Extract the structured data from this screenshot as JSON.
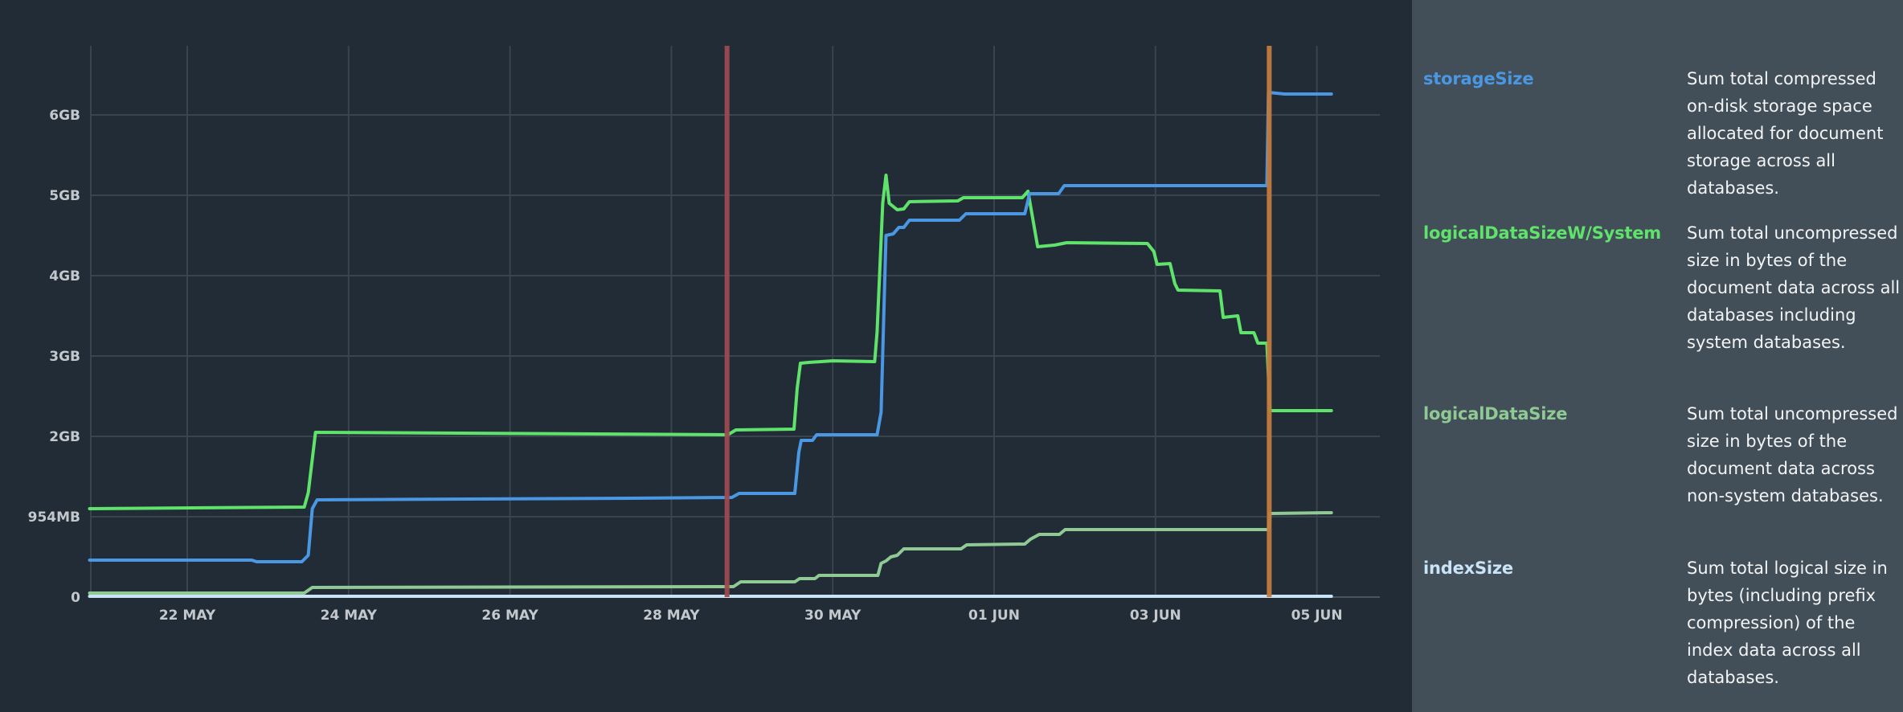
{
  "chart_data": {
    "type": "line",
    "title": "",
    "xlabel": "",
    "ylabel": "",
    "x_unit": "days since 22 MAY 00:00",
    "xlim": [
      -1.21,
      14.83
    ],
    "ylim": [
      0,
      6.86
    ],
    "y_unit": "GB",
    "grid": true,
    "x_ticks": [
      {
        "value": 0,
        "label": "22 MAY"
      },
      {
        "value": 2,
        "label": "24 MAY"
      },
      {
        "value": 4,
        "label": "26 MAY"
      },
      {
        "value": 6,
        "label": "28 MAY"
      },
      {
        "value": 8,
        "label": "30 MAY"
      },
      {
        "value": 10,
        "label": "01 JUN"
      },
      {
        "value": 12,
        "label": "03 JUN"
      },
      {
        "value": 14,
        "label": "05 JUN"
      }
    ],
    "y_ticks": [
      {
        "value": 0,
        "label": "0"
      },
      {
        "value": 1,
        "label": "954MB"
      },
      {
        "value": 2,
        "label": "2GB"
      },
      {
        "value": 3,
        "label": "3GB"
      },
      {
        "value": 4,
        "label": "4GB"
      },
      {
        "value": 5,
        "label": "5GB"
      },
      {
        "value": 6,
        "label": "6GB"
      }
    ],
    "markers": [
      {
        "x": 6.69,
        "color": "#9c4a50"
      },
      {
        "x": 13.41,
        "color": "#c27a3e"
      }
    ],
    "series": [
      {
        "name": "storageSize",
        "color": "#4a97e4",
        "points": [
          [
            -1.21,
            0.46
          ],
          [
            0.8,
            0.46
          ],
          [
            0.86,
            0.44
          ],
          [
            1.42,
            0.44
          ],
          [
            1.5,
            0.52
          ],
          [
            1.55,
            1.1
          ],
          [
            1.61,
            1.21
          ],
          [
            5.5,
            1.23
          ],
          [
            6.75,
            1.24
          ],
          [
            6.84,
            1.29
          ],
          [
            7.53,
            1.29
          ],
          [
            7.58,
            1.8
          ],
          [
            7.61,
            1.95
          ],
          [
            7.75,
            1.95
          ],
          [
            7.8,
            2.02
          ],
          [
            8.55,
            2.02
          ],
          [
            8.6,
            2.3
          ],
          [
            8.66,
            4.5
          ],
          [
            8.75,
            4.52
          ],
          [
            8.82,
            4.6
          ],
          [
            8.88,
            4.6
          ],
          [
            8.95,
            4.69
          ],
          [
            9.57,
            4.69
          ],
          [
            9.65,
            4.77
          ],
          [
            10.38,
            4.77
          ],
          [
            10.44,
            5.02
          ],
          [
            10.8,
            5.02
          ],
          [
            10.87,
            5.12
          ],
          [
            13.38,
            5.12
          ],
          [
            13.4,
            6.28
          ],
          [
            13.6,
            6.26
          ],
          [
            14.18,
            6.26
          ]
        ]
      },
      {
        "name": "logicalDataSizeW/System",
        "color": "#5fe36a",
        "points": [
          [
            -1.21,
            1.1
          ],
          [
            1.45,
            1.12
          ],
          [
            1.5,
            1.3
          ],
          [
            1.59,
            2.05
          ],
          [
            6.7,
            2.02
          ],
          [
            6.8,
            2.08
          ],
          [
            7.52,
            2.09
          ],
          [
            7.56,
            2.6
          ],
          [
            7.6,
            2.91
          ],
          [
            7.7,
            2.92
          ],
          [
            8.0,
            2.94
          ],
          [
            8.52,
            2.93
          ],
          [
            8.55,
            3.3
          ],
          [
            8.62,
            4.9
          ],
          [
            8.66,
            5.25
          ],
          [
            8.7,
            4.9
          ],
          [
            8.8,
            4.82
          ],
          [
            8.88,
            4.83
          ],
          [
            8.95,
            4.92
          ],
          [
            9.55,
            4.93
          ],
          [
            9.62,
            4.97
          ],
          [
            10.35,
            4.97
          ],
          [
            10.42,
            5.05
          ],
          [
            10.54,
            4.36
          ],
          [
            10.75,
            4.38
          ],
          [
            10.9,
            4.41
          ],
          [
            11.9,
            4.4
          ],
          [
            11.98,
            4.3
          ],
          [
            12.02,
            4.14
          ],
          [
            12.18,
            4.15
          ],
          [
            12.24,
            3.9
          ],
          [
            12.28,
            3.82
          ],
          [
            12.8,
            3.81
          ],
          [
            12.84,
            3.48
          ],
          [
            13.02,
            3.5
          ],
          [
            13.06,
            3.29
          ],
          [
            13.22,
            3.29
          ],
          [
            13.27,
            3.16
          ],
          [
            13.38,
            3.16
          ],
          [
            13.42,
            2.32
          ],
          [
            14.18,
            2.32
          ]
        ]
      },
      {
        "name": "logicalDataSize",
        "color": "#8fc994",
        "points": [
          [
            -1.21,
            0.05
          ],
          [
            1.45,
            0.05
          ],
          [
            1.55,
            0.12
          ],
          [
            6.77,
            0.13
          ],
          [
            6.86,
            0.19
          ],
          [
            7.53,
            0.19
          ],
          [
            7.59,
            0.23
          ],
          [
            7.78,
            0.23
          ],
          [
            7.83,
            0.27
          ],
          [
            8.56,
            0.27
          ],
          [
            8.6,
            0.42
          ],
          [
            8.66,
            0.45
          ],
          [
            8.72,
            0.5
          ],
          [
            8.8,
            0.52
          ],
          [
            8.88,
            0.6
          ],
          [
            9.59,
            0.6
          ],
          [
            9.66,
            0.65
          ],
          [
            10.38,
            0.66
          ],
          [
            10.45,
            0.72
          ],
          [
            10.56,
            0.78
          ],
          [
            10.81,
            0.78
          ],
          [
            10.88,
            0.84
          ],
          [
            13.4,
            0.84
          ],
          [
            13.42,
            1.04
          ],
          [
            14.18,
            1.05
          ]
        ]
      },
      {
        "name": "indexSize",
        "color": "#c9e3f7",
        "points": [
          [
            -1.21,
            0.01
          ],
          [
            14.18,
            0.01
          ]
        ]
      }
    ]
  },
  "legend": [
    {
      "name": "storageSize",
      "color": "#4a97e4",
      "description": "Sum total compressed on-disk storage space allocated for document storage across all databases."
    },
    {
      "name": "logicalDataSizeW/System",
      "color": "#5fe36a",
      "description": "Sum total uncompressed size in bytes of the document data across all databases including system databases."
    },
    {
      "name": "logicalDataSize",
      "color": "#8fc994",
      "description": "Sum total uncompressed size in bytes of the document data across non-system databases."
    },
    {
      "name": "indexSize",
      "color": "#c9e3f7",
      "description": "Sum total logical size in bytes (including prefix compression) of the index data across all databases."
    }
  ]
}
